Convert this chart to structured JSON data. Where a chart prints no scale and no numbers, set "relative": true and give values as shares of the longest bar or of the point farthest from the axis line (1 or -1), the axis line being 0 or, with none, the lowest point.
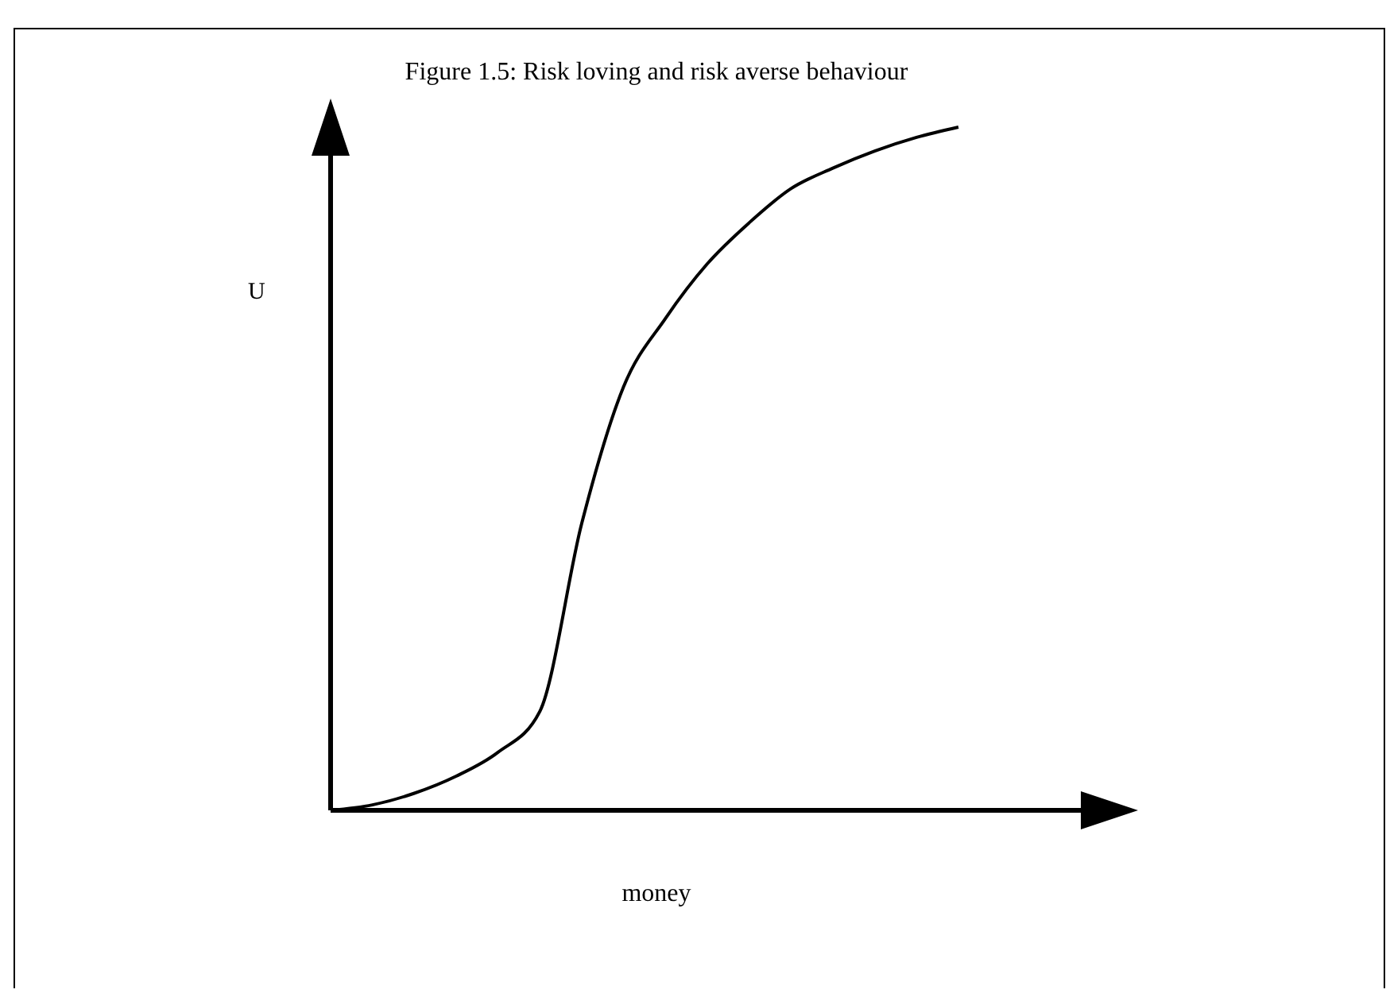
{
  "chart_data": {
    "type": "line",
    "title": "Figure 1.5: Risk loving and risk averse behaviour",
    "xlabel": "money",
    "ylabel": "U",
    "relative": true,
    "categories": [
      null,
      null,
      null,
      null,
      null,
      null,
      null,
      null,
      null,
      null,
      null,
      null,
      null,
      null,
      null,
      null
    ],
    "series": [
      {
        "color": "#000000",
        "values": [
          0,
          0.008,
          0.025,
          0.05,
          0.085,
          0.145,
          0.42,
          0.62,
          0.72,
          0.8,
          0.86,
          0.91,
          0.94,
          0.965,
          0.985,
          1
        ]
      }
    ],
    "marker": "none",
    "line_style": "solid",
    "grid": false
  }
}
